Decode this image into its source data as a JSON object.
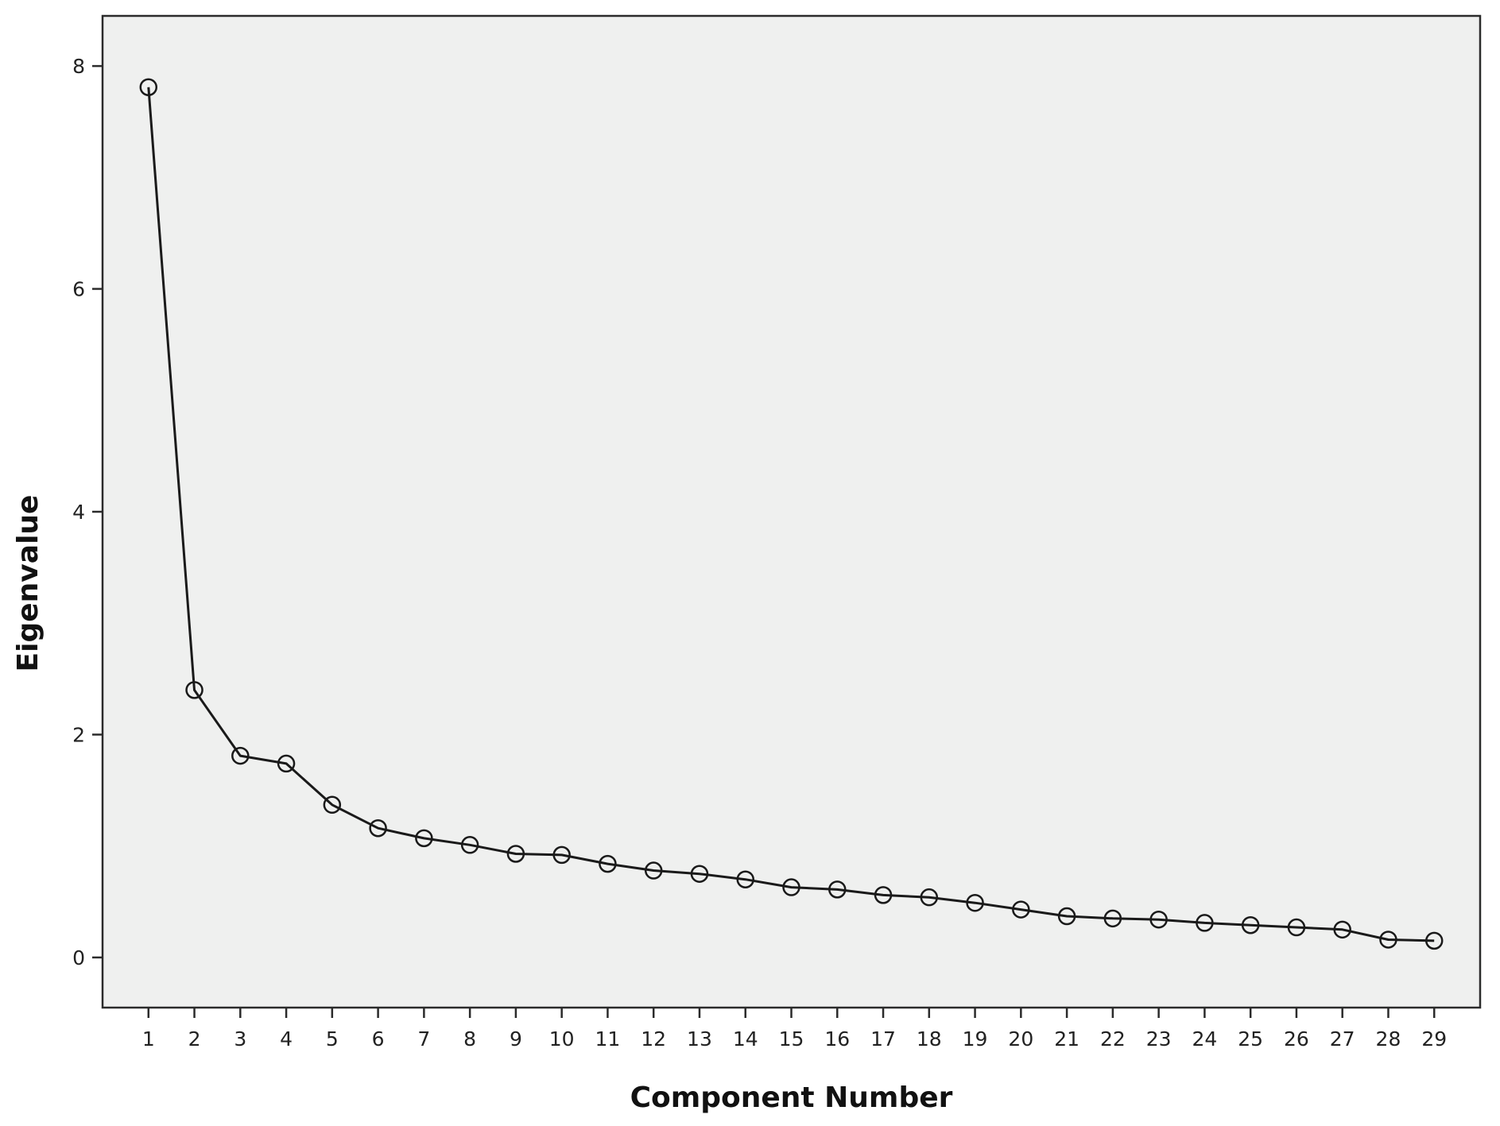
{
  "chart_data": {
    "type": "line",
    "title": "",
    "xlabel": "Component Number",
    "ylabel": "Eigenvalue",
    "x": [
      1,
      2,
      3,
      4,
      5,
      6,
      7,
      8,
      9,
      10,
      11,
      12,
      13,
      14,
      15,
      16,
      17,
      18,
      19,
      20,
      21,
      22,
      23,
      24,
      25,
      26,
      27,
      28,
      29
    ],
    "x_tick_labels": [
      "1",
      "2",
      "3",
      "4",
      "5",
      "6",
      "7",
      "8",
      "9",
      "10",
      "11",
      "12",
      "13",
      "14",
      "15",
      "16",
      "17",
      "18",
      "19",
      "20",
      "21",
      "22",
      "23",
      "24",
      "25",
      "26",
      "27",
      "28",
      "29"
    ],
    "series": [
      {
        "values": [
          7.81,
          2.4,
          1.81,
          1.74,
          1.37,
          1.16,
          1.07,
          1.01,
          0.93,
          0.92,
          0.84,
          0.78,
          0.75,
          0.7,
          0.63,
          0.61,
          0.56,
          0.54,
          0.49,
          0.43,
          0.37,
          0.35,
          0.34,
          0.31,
          0.29,
          0.27,
          0.25,
          0.16,
          0.15
        ],
        "marker": "open-circle",
        "color": "#1a1a1a"
      }
    ],
    "y_ticks": [
      0,
      2,
      4,
      6,
      8
    ],
    "y_tick_labels": [
      "0",
      "2",
      "4",
      "6",
      "8"
    ],
    "ylim": [
      -0.45,
      8.45
    ],
    "xlim": [
      0.0,
      30.0
    ],
    "grid": false,
    "legend": "none",
    "plot_background": "#eff0ef",
    "page_background": "#ffffff",
    "axis_color": "#2b2b2b"
  }
}
